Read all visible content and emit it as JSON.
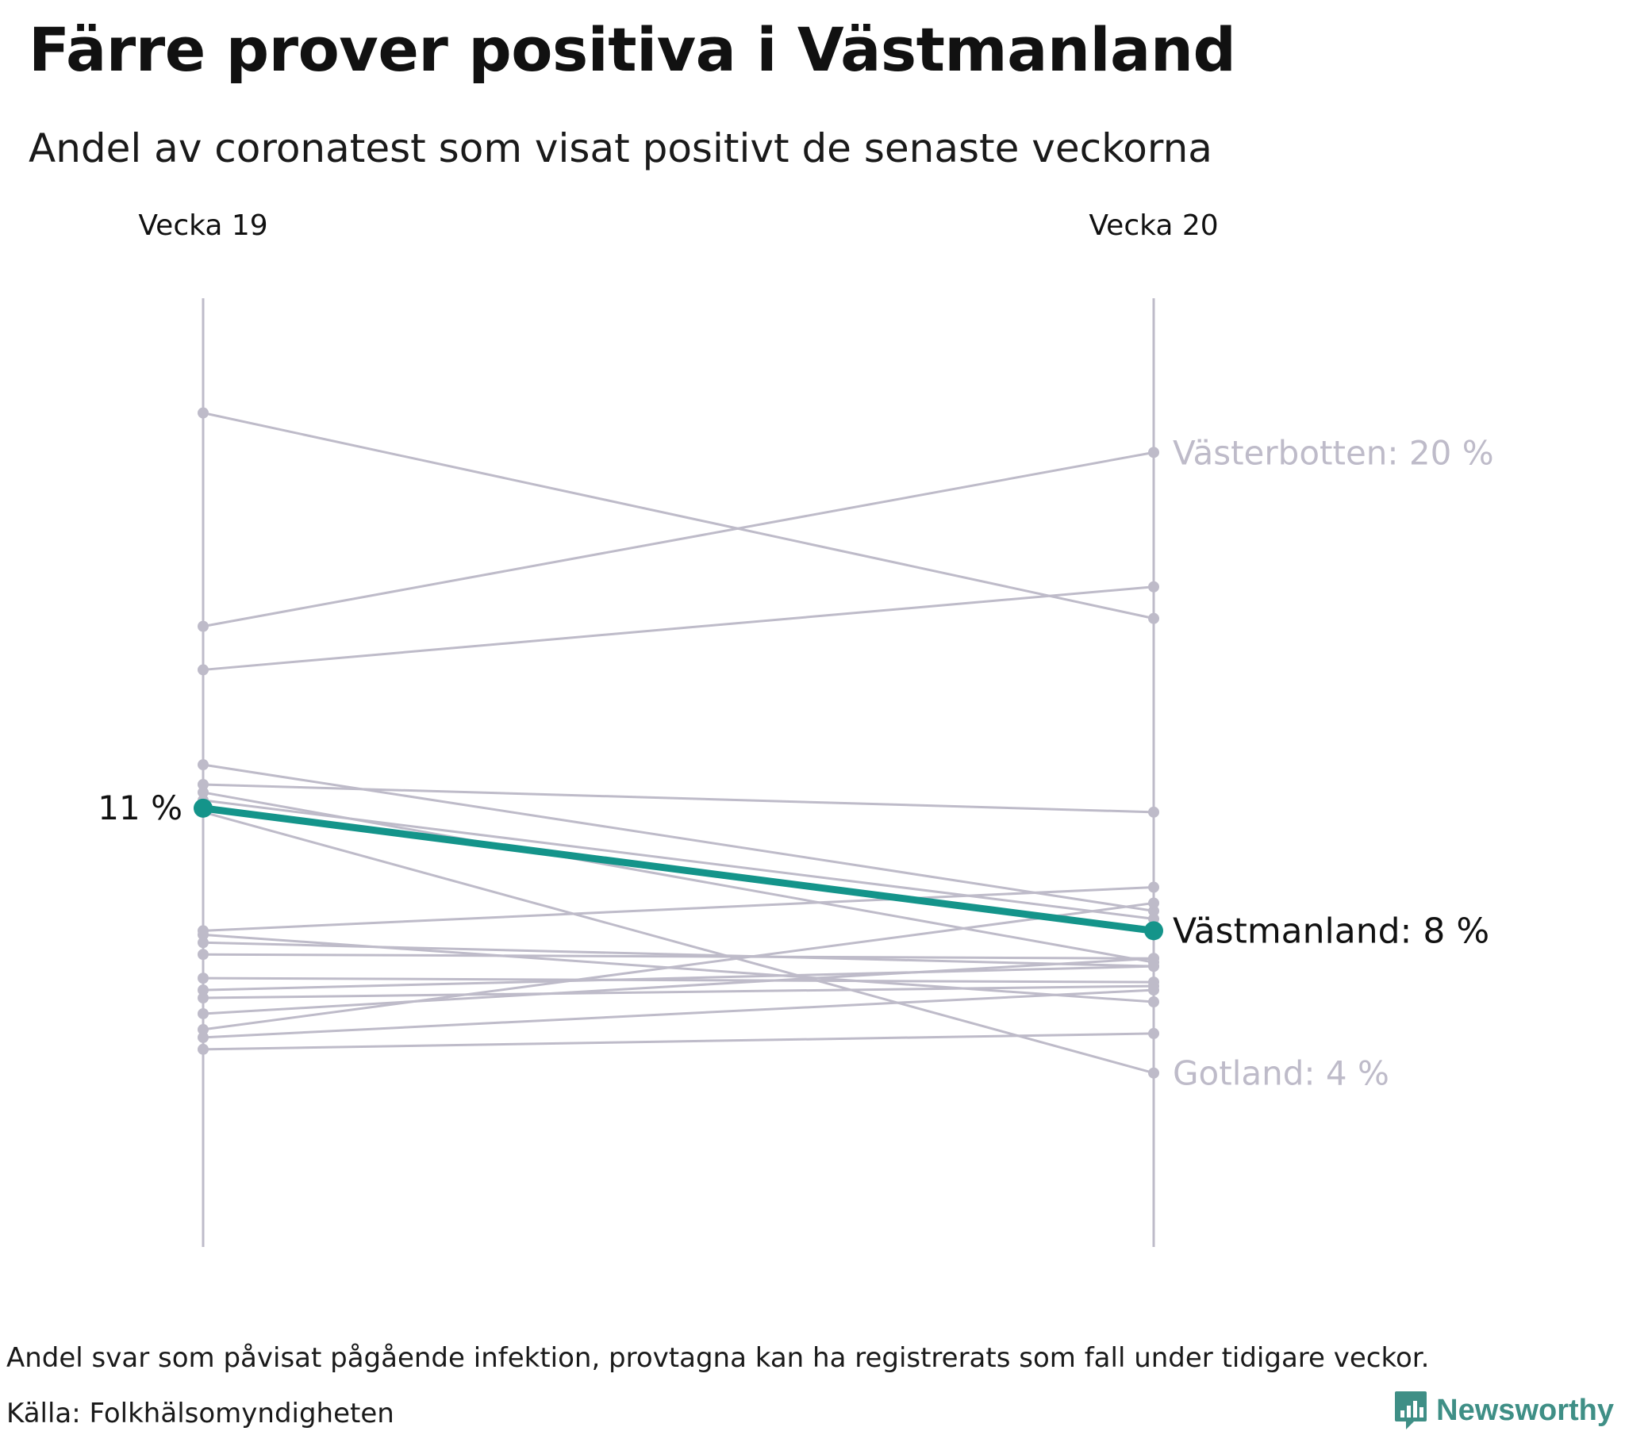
{
  "title": "Färre prover positiva i Västmanland",
  "subtitle": "Andel av coronatest som visat positivt de senaste veckorna",
  "note": "Andel svar som påvisat pågående infektion, provtagna kan ha registrerats som fall under tidigare veckor.",
  "source": "Källa: Folkhälsomyndigheten",
  "brand": "Newsworthy",
  "colors": {
    "highlight": "#14948a",
    "context": "#bebbc9",
    "text": "#111111",
    "brand": "#3f8f86"
  },
  "chart_data": {
    "type": "slope",
    "title": "Färre prover positiva i Västmanland",
    "subtitle": "Andel av coronatest som visat positivt de senaste veckorna",
    "x": [
      "Vecka 19",
      "Vecka 20"
    ],
    "unit": "%",
    "ylim": [
      0,
      24
    ],
    "highlight": {
      "name": "Västmanland",
      "values": [
        11.1,
        8.0
      ],
      "start_label": "11 %",
      "end_label": "Västmanland: 8 %"
    },
    "labeled": [
      {
        "name": "Västerbotten",
        "values": [
          15.7,
          20.1
        ],
        "label": "Västerbotten: 20 %"
      },
      {
        "name": "Gotland",
        "values": [
          11.0,
          4.4
        ],
        "label": "Gotland: 4 %"
      }
    ],
    "series": [
      {
        "name": "Västerbotten",
        "values": [
          15.7,
          20.1
        ]
      },
      {
        "name": "Gotland",
        "values": [
          11.0,
          4.4
        ]
      },
      {
        "name": "",
        "values": [
          21.1,
          15.9
        ]
      },
      {
        "name": "",
        "values": [
          14.6,
          16.7
        ]
      },
      {
        "name": "",
        "values": [
          12.2,
          8.5
        ]
      },
      {
        "name": "",
        "values": [
          11.7,
          11.0
        ]
      },
      {
        "name": "",
        "values": [
          11.5,
          7.2
        ]
      },
      {
        "name": "",
        "values": [
          11.3,
          8.3
        ]
      },
      {
        "name": "",
        "values": [
          8.0,
          9.1
        ]
      },
      {
        "name": "",
        "values": [
          7.9,
          6.2
        ]
      },
      {
        "name": "",
        "values": [
          7.7,
          7.1
        ]
      },
      {
        "name": "",
        "values": [
          7.4,
          7.3
        ]
      },
      {
        "name": "",
        "values": [
          6.8,
          6.7
        ]
      },
      {
        "name": "",
        "values": [
          6.5,
          7.1
        ]
      },
      {
        "name": "",
        "values": [
          6.3,
          6.6
        ]
      },
      {
        "name": "",
        "values": [
          5.9,
          7.3
        ]
      },
      {
        "name": "",
        "values": [
          5.5,
          8.7
        ]
      },
      {
        "name": "",
        "values": [
          5.3,
          6.5
        ]
      },
      {
        "name": "",
        "values": [
          5.0,
          5.4
        ]
      }
    ]
  }
}
